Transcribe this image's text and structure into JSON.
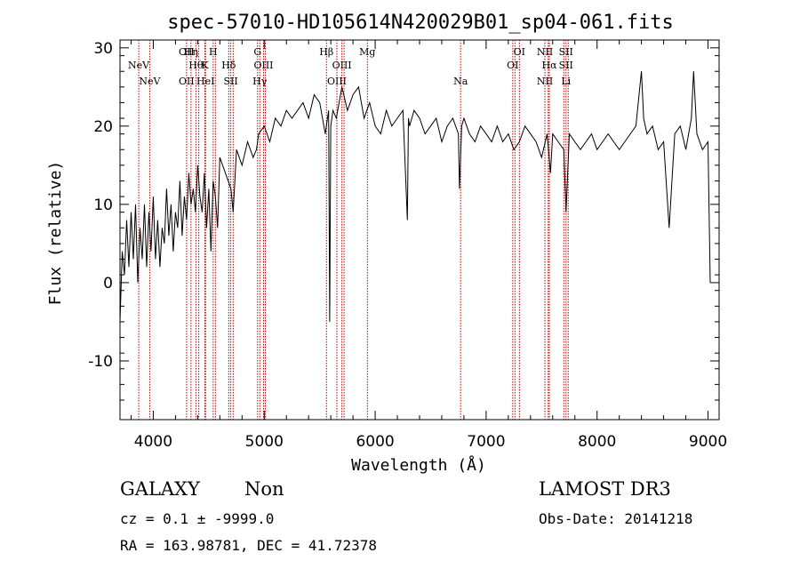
{
  "chart_data": {
    "type": "line",
    "title": "spec-57010-HD105614N420029B01_sp04-061.fits",
    "xlabel": "Wavelength (Å)",
    "ylabel": "Flux (relative)",
    "xlim": [
      3700,
      9100
    ],
    "ylim": [
      -17.5,
      31
    ],
    "x_ticks": [
      4000,
      5000,
      6000,
      7000,
      8000,
      9000
    ],
    "y_ticks": [
      -10,
      0,
      10,
      20,
      30
    ],
    "series": [
      {
        "name": "flux",
        "x": [
          3700,
          3720,
          3740,
          3760,
          3780,
          3800,
          3820,
          3840,
          3860,
          3880,
          3900,
          3920,
          3940,
          3960,
          3980,
          4000,
          4020,
          4040,
          4060,
          4080,
          4100,
          4120,
          4140,
          4160,
          4180,
          4200,
          4220,
          4240,
          4260,
          4280,
          4300,
          4320,
          4340,
          4360,
          4380,
          4400,
          4420,
          4440,
          4460,
          4480,
          4500,
          4520,
          4540,
          4560,
          4580,
          4600,
          4650,
          4700,
          4720,
          4750,
          4800,
          4850,
          4900,
          4930,
          4950,
          5000,
          5050,
          5100,
          5150,
          5200,
          5250,
          5300,
          5350,
          5400,
          5450,
          5500,
          5550,
          5580,
          5590,
          5600,
          5620,
          5650,
          5700,
          5750,
          5800,
          5850,
          5900,
          5950,
          6000,
          6050,
          6100,
          6150,
          6200,
          6250,
          6290,
          6300,
          6310,
          6350,
          6400,
          6450,
          6500,
          6550,
          6600,
          6650,
          6700,
          6750,
          6760,
          6780,
          6800,
          6850,
          6900,
          6950,
          7000,
          7050,
          7100,
          7150,
          7200,
          7250,
          7300,
          7350,
          7400,
          7450,
          7500,
          7550,
          7580,
          7600,
          7650,
          7700,
          7720,
          7750,
          7800,
          7850,
          7900,
          7950,
          8000,
          8050,
          8100,
          8150,
          8200,
          8250,
          8300,
          8350,
          8400,
          8420,
          8450,
          8500,
          8550,
          8600,
          8650,
          8700,
          8750,
          8800,
          8850,
          8870,
          8900,
          8950,
          9000,
          9020
        ],
        "y": [
          -5,
          4,
          1,
          8,
          2,
          9,
          3,
          10,
          0,
          7,
          3,
          10,
          2,
          9,
          4,
          11,
          3,
          8,
          2,
          7,
          5,
          12,
          6,
          10,
          4,
          9,
          7,
          13,
          6,
          11,
          8,
          14,
          10,
          12,
          9,
          15,
          11,
          9,
          14,
          7,
          12,
          4,
          13,
          11,
          7,
          16,
          14,
          12,
          9,
          17,
          15,
          18,
          16,
          17,
          19,
          20,
          18,
          21,
          20,
          22,
          21,
          22,
          23,
          21,
          24,
          23,
          19,
          22,
          -5,
          20,
          22,
          21,
          25,
          22,
          24,
          25,
          21,
          23,
          20,
          19,
          22,
          20,
          21,
          22,
          8,
          21,
          20,
          22,
          21,
          19,
          20,
          21,
          18,
          20,
          21,
          19,
          12,
          20,
          21,
          19,
          18,
          20,
          19,
          18,
          20,
          18,
          19,
          17,
          18,
          20,
          19,
          18,
          16,
          19,
          14,
          19,
          18,
          17,
          9,
          19,
          18,
          17,
          18,
          19,
          17,
          18,
          19,
          18,
          17,
          18,
          19,
          20,
          27,
          21,
          19,
          20,
          17,
          18,
          7,
          19,
          20,
          17,
          21,
          27,
          19,
          17,
          18,
          0
        ]
      }
    ],
    "spectral_lines": [
      {
        "wavelength": 3869,
        "label": "NeV",
        "row": 1
      },
      {
        "wavelength": 3968,
        "label": "NeV",
        "row": 2
      },
      {
        "wavelength": 4300,
        "label": "OII",
        "row": 0
      },
      {
        "wavelength": 4300,
        "label": "OII",
        "row": 2
      },
      {
        "wavelength": 4340,
        "label": "Hη",
        "row": 0
      },
      {
        "wavelength": 4384,
        "label": "Hθ",
        "row": 1
      },
      {
        "wavelength": 4471,
        "label": "HeI",
        "row": 2
      },
      {
        "wavelength": 4465,
        "label": "K",
        "row": 1
      },
      {
        "wavelength": 4540,
        "label": "H",
        "row": 0
      },
      {
        "wavelength": 4680,
        "label": "Hδ",
        "row": 1
      },
      {
        "wavelength": 4698,
        "label": "SII",
        "row": 2
      },
      {
        "wavelength": 4940,
        "label": "G",
        "row": 0
      },
      {
        "wavelength": 4994,
        "label": "OIII",
        "row": 1
      },
      {
        "wavelength": 4960,
        "label": "Hγ",
        "row": 2
      },
      {
        "wavelength": 5561,
        "label": "Hβ",
        "row": 0
      },
      {
        "wavelength": 5700,
        "label": "OIII",
        "row": 1
      },
      {
        "wavelength": 5655,
        "label": "OIII",
        "row": 2
      },
      {
        "wavelength": 5930,
        "label": "Mg",
        "row": 0
      },
      {
        "wavelength": 6770,
        "label": "Na",
        "row": 2
      },
      {
        "wavelength": 7300,
        "label": "OI",
        "row": 0
      },
      {
        "wavelength": 7240,
        "label": "OI",
        "row": 1
      },
      {
        "wavelength": 7530,
        "label": "NII",
        "row": 0
      },
      {
        "wavelength": 7570,
        "label": "Hα",
        "row": 1
      },
      {
        "wavelength": 7530,
        "label": "NII",
        "row": 2
      },
      {
        "wavelength": 7720,
        "label": "SII",
        "row": 0
      },
      {
        "wavelength": 7720,
        "label": "SII",
        "row": 1
      },
      {
        "wavelength": 7720,
        "label": "Li",
        "row": 2
      }
    ],
    "extra_line_wavelengths": [
      4410,
      4560,
      4720,
      5010,
      5720,
      7260,
      7560,
      7700,
      7740
    ]
  },
  "info": {
    "object_class": "GALAXY",
    "subclass": "Non",
    "survey": "LAMOST DR3",
    "cz": "cz = 0.1 ± -9999.0",
    "obs_date": "Obs-Date: 20141218",
    "coords": "RA = 163.98781, DEC =  41.72378"
  },
  "colors": {
    "line_marker": "#c00000",
    "spectrum": "#000000",
    "axes": "#000000"
  }
}
